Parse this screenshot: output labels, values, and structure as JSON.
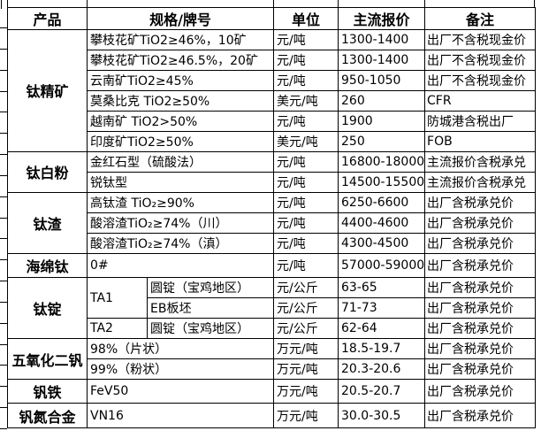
{
  "page": {
    "background_color": "#ffffff",
    "border_color": "#000000",
    "text_color": "#000000"
  },
  "table": {
    "columns": [
      "产品",
      "规格/牌号",
      "单位",
      "主流报价",
      "备注"
    ],
    "groups": [
      {
        "product": "钛精矿",
        "rows": [
          {
            "spec": "攀枝花矿TiO2≥46%，10矿",
            "unit": "元/吨",
            "price": "1300-1400",
            "note": "出厂不含税现金价"
          },
          {
            "spec": "攀枝花矿TiO2≥46.5%，20矿",
            "unit": "元/吨",
            "price": "1300-1400",
            "note": "出厂不含税现金价"
          },
          {
            "spec": "云南矿TiO2≥45%",
            "unit": "元/吨",
            "price": "950-1050",
            "note": "出厂不含税现金价"
          },
          {
            "spec": "莫桑比克 TiO2≥50%",
            "unit": "美元/吨",
            "price": "260",
            "note": "CFR"
          },
          {
            "spec": "越南矿 TiO2>50%",
            "unit": "元/吨",
            "price": "1900",
            "note": "防城港含税出厂"
          },
          {
            "spec": "印度矿TiO2≥50%",
            "unit": "美元/吨",
            "price": "250",
            "note": "FOB"
          }
        ]
      },
      {
        "product": "钛白粉",
        "rows": [
          {
            "spec": "金红石型（硫酸法）",
            "unit": "元/吨",
            "price": "16800-18000",
            "note": "主流报价含税承兑"
          },
          {
            "spec": "锐钛型",
            "unit": "元/吨",
            "price": "14500-15500",
            "note": "主流报价含税承兑"
          }
        ]
      },
      {
        "product": "钛渣",
        "rows": [
          {
            "spec": "高钛渣 TiO₂≥90%",
            "unit": "元/吨",
            "price": "6250-6600",
            "note": "出厂含税承兑价"
          },
          {
            "spec": "酸溶渣TiO₂≥74%（川）",
            "unit": "元/吨",
            "price": "4400-4600",
            "note": "出厂含税承兑价"
          },
          {
            "spec": "酸溶渣TiO₂≥74%（滇）",
            "unit": "元/吨",
            "price": "4300-4500",
            "note": "出厂含税承兑价"
          }
        ]
      },
      {
        "product": "海绵钛",
        "rows": [
          {
            "spec": "0#",
            "unit": "元/吨",
            "price": "57000-59000",
            "note": "出厂含税承兑价"
          }
        ]
      },
      {
        "product": "钛锭",
        "rows": [
          {
            "grade": "TA1",
            "grade_rowspan": 2,
            "spec": "圆锭（宝鸡地区）",
            "unit": "元/公斤",
            "price": "63-65",
            "note": "出厂含税承兑价"
          },
          {
            "spec": "EB板坯",
            "unit": "元/公斤",
            "price": "71-73",
            "note": "出厂含税承兑价"
          },
          {
            "grade": "TA2",
            "grade_rowspan": 1,
            "spec": "圆锭（宝鸡地区）",
            "unit": "元/公斤",
            "price": "62-64",
            "note": "出厂含税承兑价"
          }
        ]
      },
      {
        "product": "五氧化二钒",
        "rows": [
          {
            "spec": "98%（片状）",
            "unit": "万元/吨",
            "price": "18.5-19.7",
            "note": "出厂含税承兑价"
          },
          {
            "spec": "99%（粉状）",
            "unit": "万元/吨",
            "price": "20.3-20.6",
            "note": "出厂含税承兑价"
          }
        ]
      },
      {
        "product": "钒铁",
        "rows": [
          {
            "spec": "FeV50",
            "unit": "万元/吨",
            "price": "20.5-20.7",
            "note": "出厂含税承兑价"
          }
        ]
      },
      {
        "product": "钒氮合金",
        "rows": [
          {
            "spec": "VN16",
            "unit": "万元/吨",
            "price": "30.0-30.5",
            "note": "出厂含税承兑价"
          }
        ]
      }
    ]
  }
}
